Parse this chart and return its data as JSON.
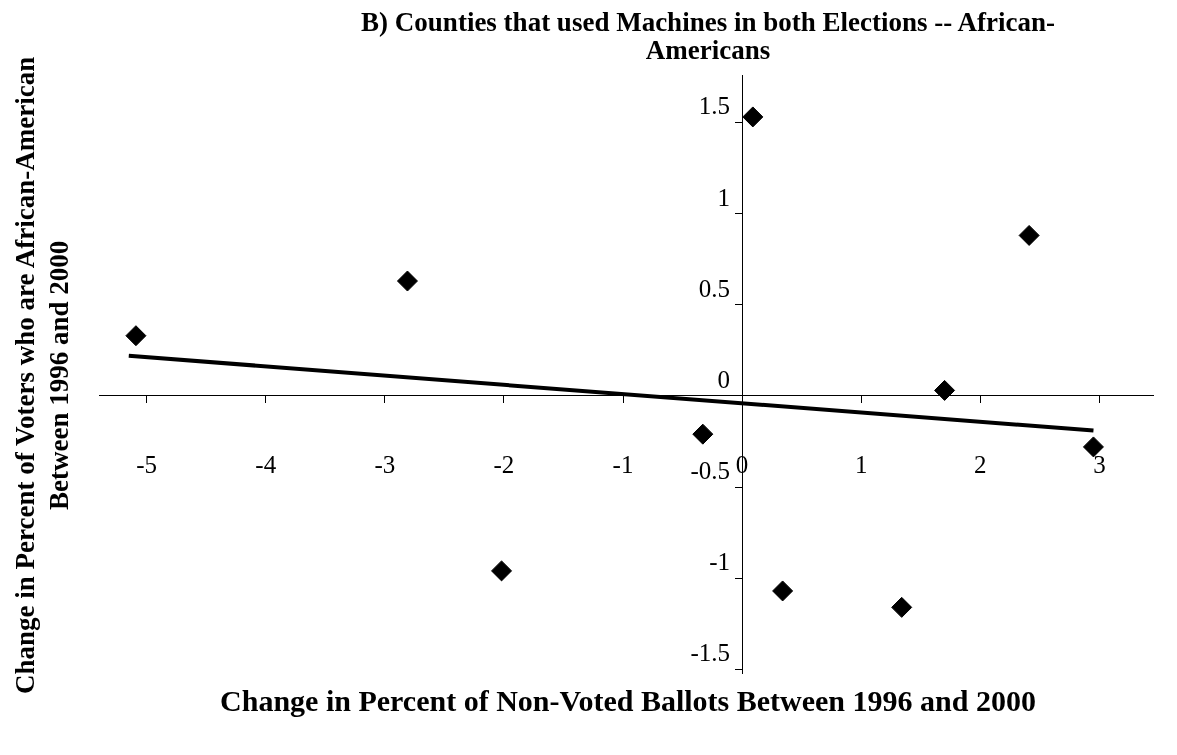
{
  "chart_data": {
    "type": "scatter",
    "title": "B) Counties that used Machines in both Elections -- African-Americans",
    "xlabel": "Change in Percent of Non-Voted Ballots Between 1996 and 2000",
    "ylabel": "Change in Percent of Voters who are African-American Between 1996 and 2000",
    "series": [
      {
        "type": "scatter",
        "color": "#000000",
        "marker": "diamond",
        "x": [
          -5.09,
          -2.81,
          -2.02,
          -0.33,
          0.09,
          0.34,
          1.34,
          1.7,
          2.41,
          2.95
        ],
        "values": [
          0.33,
          0.63,
          -0.96,
          -0.21,
          1.53,
          -1.07,
          -1.16,
          0.03,
          0.88,
          -0.28
        ]
      },
      {
        "type": "line",
        "color": "#000000",
        "marker": "none",
        "x": [
          -5.15,
          2.95
        ],
        "values": [
          0.22,
          -0.19
        ]
      }
    ],
    "xlim": [
      -5.4,
      3.45
    ],
    "ylim": [
      -1.52,
      1.76
    ],
    "xticks": [
      -5,
      -4,
      -3,
      -2,
      -1,
      0,
      1,
      2,
      3
    ],
    "yticks": [
      -1.5,
      -1,
      -0.5,
      0,
      0.5,
      1,
      1.5
    ],
    "grid": false,
    "legend": false
  }
}
